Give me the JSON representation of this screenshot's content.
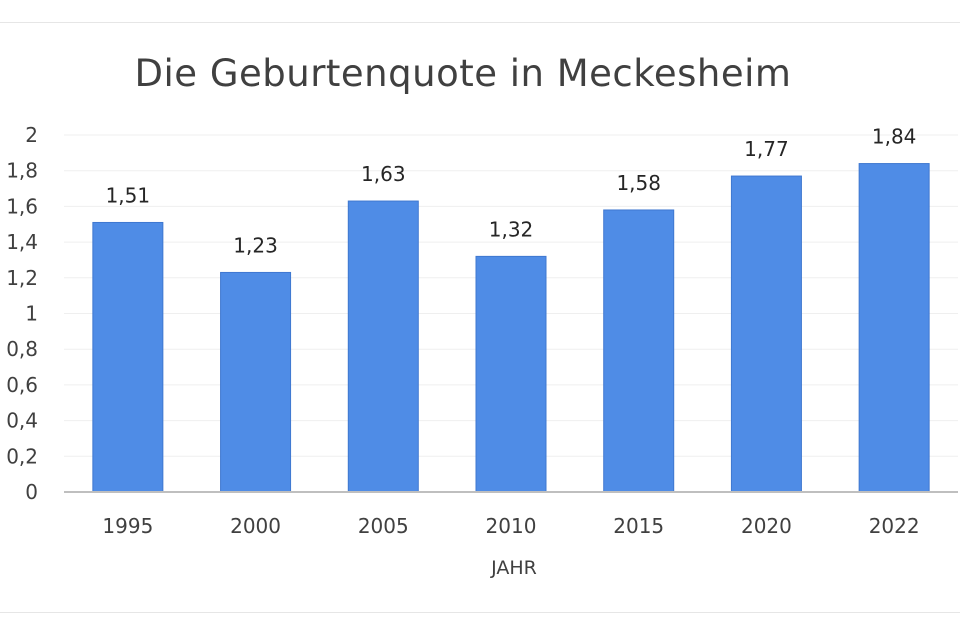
{
  "chart_data": {
    "type": "bar",
    "title": "Die Geburtenquote in Meckesheim",
    "xlabel": "JAHR",
    "ylabel": "",
    "categories": [
      "1995",
      "2000",
      "2005",
      "2010",
      "2015",
      "2020",
      "2022"
    ],
    "values": [
      1.51,
      1.23,
      1.63,
      1.32,
      1.58,
      1.77,
      1.84
    ],
    "data_labels": [
      "1,51",
      "1,23",
      "1,63",
      "1,32",
      "1,58",
      "1,77",
      "1,84"
    ],
    "ylim": [
      0,
      2
    ],
    "yticks": [
      0,
      0.2,
      0.4,
      0.6,
      0.8,
      1,
      1.2,
      1.4,
      1.6,
      1.8,
      2
    ],
    "ytick_labels": [
      "0",
      "0,2",
      "0,4",
      "0,6",
      "0,8",
      "1",
      "1,2",
      "1,4",
      "1,6",
      "1,8",
      "2"
    ],
    "grid": true,
    "legend": "none",
    "colors": {
      "bar": "#4f8ce6",
      "bar_edge": "#3f78d0",
      "grid": "#efefef",
      "axis": "#bfbfbf"
    }
  }
}
